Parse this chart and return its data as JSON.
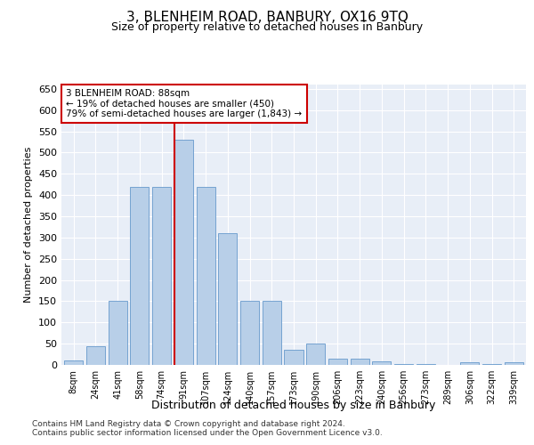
{
  "title": "3, BLENHEIM ROAD, BANBURY, OX16 9TQ",
  "subtitle": "Size of property relative to detached houses in Banbury",
  "xlabel": "Distribution of detached houses by size in Banbury",
  "ylabel": "Number of detached properties",
  "categories": [
    "8sqm",
    "24sqm",
    "41sqm",
    "58sqm",
    "74sqm",
    "91sqm",
    "107sqm",
    "124sqm",
    "140sqm",
    "157sqm",
    "173sqm",
    "190sqm",
    "206sqm",
    "223sqm",
    "240sqm",
    "256sqm",
    "273sqm",
    "289sqm",
    "306sqm",
    "322sqm",
    "339sqm"
  ],
  "values": [
    10,
    45,
    150,
    420,
    420,
    530,
    420,
    310,
    150,
    150,
    35,
    50,
    15,
    15,
    8,
    3,
    2,
    0,
    7,
    2,
    7
  ],
  "bar_color": "#b8cfe8",
  "bar_edge_color": "#6699cc",
  "property_line_color": "#cc0000",
  "annotation_text": "3 BLENHEIM ROAD: 88sqm\n← 19% of detached houses are smaller (450)\n79% of semi-detached houses are larger (1,843) →",
  "annotation_box_color": "#ffffff",
  "annotation_box_edge": "#cc0000",
  "ylim": [
    0,
    660
  ],
  "yticks": [
    0,
    50,
    100,
    150,
    200,
    250,
    300,
    350,
    400,
    450,
    500,
    550,
    600,
    650
  ],
  "background_color": "#e8eef7",
  "grid_color": "#ffffff",
  "footer1": "Contains HM Land Registry data © Crown copyright and database right 2024.",
  "footer2": "Contains public sector information licensed under the Open Government Licence v3.0."
}
